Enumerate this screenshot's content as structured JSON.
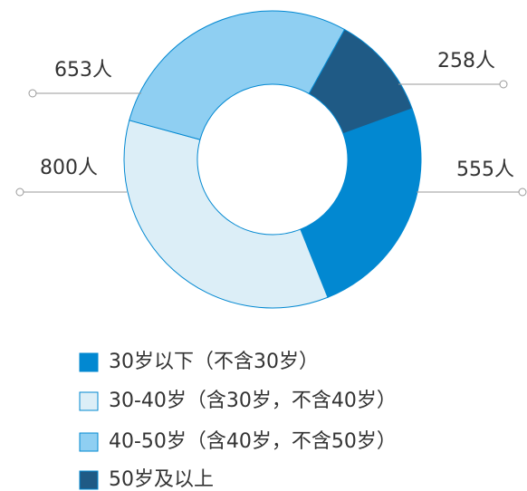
{
  "chart_data": {
    "type": "donut",
    "categories": [
      "30岁以下（不含30岁）",
      "30-40岁（含30岁，不含40岁）",
      "40-50岁（含40岁，不含50岁）",
      "50岁及以上"
    ],
    "values": [
      555,
      800,
      653,
      258
    ],
    "value_labels": [
      "555人",
      "800人",
      "653人",
      "258人"
    ],
    "colors": [
      "#0288d1",
      "#dceef7",
      "#8fcff2",
      "#1f5a85"
    ]
  }
}
